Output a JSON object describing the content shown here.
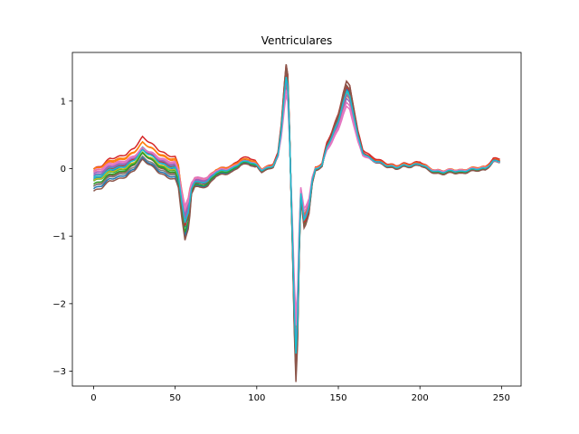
{
  "chart_data": {
    "type": "line",
    "title": "Ventriculares",
    "xlabel": "",
    "ylabel": "",
    "xlim": [
      -13,
      262
    ],
    "ylim": [
      -3.22,
      1.72
    ],
    "x_ticks": [
      0,
      50,
      100,
      150,
      200,
      250
    ],
    "y_ticks": [
      1,
      0,
      -1,
      -2,
      -3
    ],
    "x_tick_labels": [
      "0",
      "50",
      "100",
      "150",
      "200",
      "250"
    ],
    "y_tick_labels": [
      "1",
      "0",
      "−1",
      "−2",
      "−3"
    ],
    "grid": false,
    "legend": "none",
    "x_range": [
      0,
      249
    ],
    "base_waveform": [
      [
        0,
        -0.15
      ],
      [
        5,
        -0.1
      ],
      [
        10,
        0.0
      ],
      [
        15,
        0.02
      ],
      [
        20,
        0.06
      ],
      [
        25,
        0.15
      ],
      [
        30,
        0.3
      ],
      [
        35,
        0.22
      ],
      [
        40,
        0.12
      ],
      [
        45,
        0.05
      ],
      [
        50,
        0.02
      ],
      [
        52,
        -0.1
      ],
      [
        54,
        -0.5
      ],
      [
        56,
        -0.85
      ],
      [
        58,
        -0.7
      ],
      [
        60,
        -0.3
      ],
      [
        62,
        -0.2
      ],
      [
        65,
        -0.22
      ],
      [
        70,
        -0.2
      ],
      [
        75,
        -0.05
      ],
      [
        80,
        -0.03
      ],
      [
        85,
        0.0
      ],
      [
        90,
        0.1
      ],
      [
        95,
        0.12
      ],
      [
        100,
        0.05
      ],
      [
        103,
        -0.02
      ],
      [
        106,
        0.0
      ],
      [
        110,
        0.05
      ],
      [
        113,
        0.2
      ],
      [
        115,
        0.6
      ],
      [
        117,
        1.2
      ],
      [
        118,
        1.45
      ],
      [
        119,
        1.3
      ],
      [
        120,
        0.6
      ],
      [
        121,
        -0.3
      ],
      [
        122,
        -1.2
      ],
      [
        123,
        -2.2
      ],
      [
        124,
        -2.9
      ],
      [
        125,
        -2.4
      ],
      [
        126,
        -1.2
      ],
      [
        127,
        -0.4
      ],
      [
        128,
        -0.6
      ],
      [
        129,
        -0.8
      ],
      [
        130,
        -0.75
      ],
      [
        132,
        -0.6
      ],
      [
        134,
        -0.2
      ],
      [
        136,
        0.0
      ],
      [
        140,
        0.05
      ],
      [
        143,
        0.35
      ],
      [
        146,
        0.5
      ],
      [
        150,
        0.75
      ],
      [
        153,
        1.05
      ],
      [
        155,
        1.2
      ],
      [
        157,
        1.15
      ],
      [
        159,
        0.9
      ],
      [
        162,
        0.5
      ],
      [
        165,
        0.25
      ],
      [
        170,
        0.15
      ],
      [
        175,
        0.1
      ],
      [
        180,
        0.05
      ],
      [
        185,
        0.02
      ],
      [
        190,
        0.05
      ],
      [
        195,
        0.05
      ],
      [
        200,
        0.08
      ],
      [
        205,
        0.0
      ],
      [
        210,
        -0.05
      ],
      [
        215,
        -0.05
      ],
      [
        220,
        -0.03
      ],
      [
        225,
        -0.05
      ],
      [
        230,
        -0.02
      ],
      [
        235,
        0.0
      ],
      [
        240,
        0.0
      ],
      [
        245,
        0.12
      ],
      [
        249,
        0.12
      ]
    ],
    "series": [
      {
        "color": "#1f77b4",
        "offset": -0.02,
        "scale": 1.0
      },
      {
        "color": "#ff7f0e",
        "offset": 0.1,
        "scale": 0.95
      },
      {
        "color": "#2ca02c",
        "offset": -0.05,
        "scale": 0.9
      },
      {
        "color": "#d62728",
        "offset": 0.15,
        "scale": 1.05
      },
      {
        "color": "#9467bd",
        "offset": 0.05,
        "scale": 0.85
      },
      {
        "color": "#8c564b",
        "offset": -0.1,
        "scale": 1.08
      },
      {
        "color": "#e377c2",
        "offset": 0.08,
        "scale": 0.75
      },
      {
        "color": "#7f7f7f",
        "offset": -0.12,
        "scale": 0.98
      },
      {
        "color": "#bcbd22",
        "offset": -0.04,
        "scale": 0.92
      },
      {
        "color": "#17becf",
        "offset": 0.02,
        "scale": 0.96
      },
      {
        "color": "#1f77b4",
        "offset": -0.15,
        "scale": 1.0
      },
      {
        "color": "#ff7f0e",
        "offset": 0.12,
        "scale": 0.88
      },
      {
        "color": "#2ca02c",
        "offset": -0.08,
        "scale": 1.02
      },
      {
        "color": "#d62728",
        "offset": 0.0,
        "scale": 1.0
      },
      {
        "color": "#9467bd",
        "offset": 0.03,
        "scale": 0.9
      },
      {
        "color": "#8c564b",
        "offset": -0.18,
        "scale": 1.04
      },
      {
        "color": "#e377c2",
        "offset": 0.06,
        "scale": 0.8
      },
      {
        "color": "#17becf",
        "offset": -0.01,
        "scale": 0.94
      }
    ]
  }
}
